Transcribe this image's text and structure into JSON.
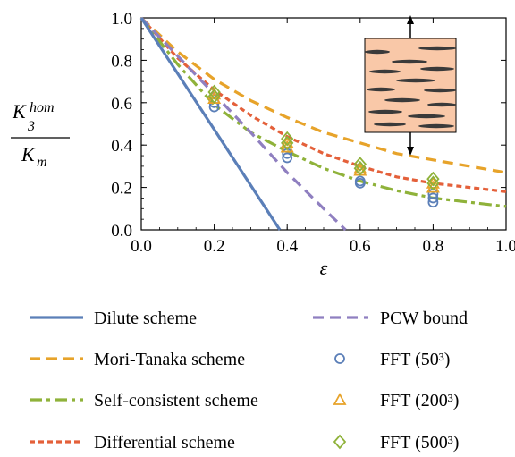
{
  "chart_data": {
    "type": "line",
    "xlabel": "ε",
    "ylabel": {
      "numerator_main": "K",
      "numerator_sup": "hom",
      "numerator_sub": "3",
      "denominator_main": "K",
      "denominator_sub": "m"
    },
    "xlim": [
      0,
      1
    ],
    "ylim": [
      0,
      1
    ],
    "xticks": [
      "0.0",
      "0.2",
      "0.4",
      "0.6",
      "0.8",
      "1.0"
    ],
    "yticks": [
      "0.0",
      "0.2",
      "0.4",
      "0.6",
      "0.8",
      "1.0"
    ],
    "grid": false,
    "legend_position": "bottom",
    "series": [
      {
        "name": "Dilute scheme",
        "kind": "line",
        "style": "solid",
        "color": "#5b7fb8",
        "x": [
          0,
          0.38
        ],
        "y": [
          1.0,
          0.0
        ]
      },
      {
        "name": "PCW bound",
        "kind": "line",
        "style": "dashed",
        "color": "#8f7fc0",
        "x": [
          0,
          0.1,
          0.2,
          0.3,
          0.4,
          0.5,
          0.56
        ],
        "y": [
          1.0,
          0.82,
          0.64,
          0.46,
          0.27,
          0.1,
          0.0
        ]
      },
      {
        "name": "Mori-Tanaka scheme",
        "kind": "line",
        "style": "dashed",
        "color": "#e7a32a",
        "x": [
          0,
          0.1,
          0.2,
          0.3,
          0.4,
          0.5,
          0.6,
          0.7,
          0.8,
          0.9,
          1.0
        ],
        "y": [
          1.0,
          0.84,
          0.71,
          0.61,
          0.53,
          0.46,
          0.41,
          0.36,
          0.33,
          0.3,
          0.27
        ]
      },
      {
        "name": "Self-consistent scheme",
        "kind": "line",
        "style": "dashdot",
        "color": "#8fb23a",
        "x": [
          0,
          0.1,
          0.2,
          0.3,
          0.4,
          0.5,
          0.6,
          0.7,
          0.8,
          0.9,
          1.0
        ],
        "y": [
          1.0,
          0.78,
          0.59,
          0.46,
          0.37,
          0.29,
          0.23,
          0.185,
          0.15,
          0.13,
          0.11
        ]
      },
      {
        "name": "Differential scheme",
        "kind": "line",
        "style": "dotted",
        "color": "#e4603a",
        "x": [
          0,
          0.1,
          0.2,
          0.3,
          0.4,
          0.5,
          0.6,
          0.7,
          0.8,
          0.9,
          1.0
        ],
        "y": [
          1.0,
          0.81,
          0.66,
          0.54,
          0.44,
          0.36,
          0.3,
          0.25,
          0.22,
          0.2,
          0.18
        ]
      },
      {
        "name": "FFT (50³)",
        "kind": "marker",
        "marker": "circle",
        "color": "#5b7fb8",
        "x": [
          0.2,
          0.2,
          0.4,
          0.4,
          0.6,
          0.6,
          0.8,
          0.8,
          0.8
        ],
        "y": [
          0.58,
          0.6,
          0.34,
          0.36,
          0.22,
          0.23,
          0.13,
          0.15,
          0.17
        ]
      },
      {
        "name": "FFT (200³)",
        "kind": "marker",
        "marker": "triangle",
        "color": "#e7a32a",
        "x": [
          0.2,
          0.2,
          0.4,
          0.4,
          0.6,
          0.6,
          0.8,
          0.8
        ],
        "y": [
          0.62,
          0.64,
          0.39,
          0.41,
          0.28,
          0.29,
          0.2,
          0.22
        ]
      },
      {
        "name": "FFT (500³)",
        "kind": "marker",
        "marker": "diamond",
        "color": "#8fb23a",
        "x": [
          0.2,
          0.2,
          0.4,
          0.4,
          0.6,
          0.6,
          0.8,
          0.8
        ],
        "y": [
          0.63,
          0.65,
          0.41,
          0.43,
          0.29,
          0.31,
          0.22,
          0.24
        ]
      }
    ],
    "inset": {
      "description_icon": "matrix-with-cracks-icon",
      "fill_color": "#f9c8a8",
      "crack_color": "#3a3a3a"
    }
  }
}
